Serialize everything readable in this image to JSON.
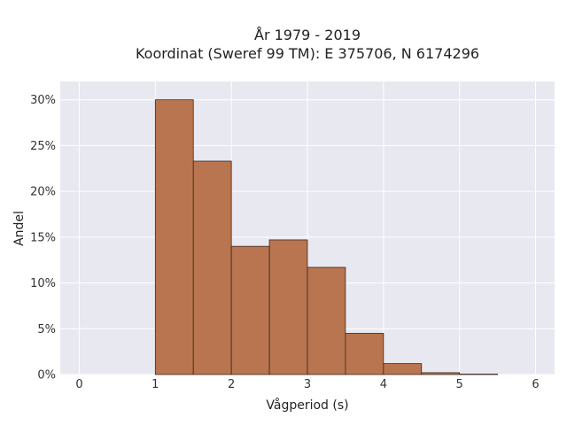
{
  "chart_data": {
    "type": "bar",
    "title_lines": [
      "År 1979 - 2019",
      "Koordinat (Sweref 99 TM): E 375706, N 6174296"
    ],
    "xlabel": "Vågperiod (s)",
    "ylabel": "Andel",
    "xlim": [
      -0.25,
      6.25
    ],
    "ylim": [
      0,
      0.32
    ],
    "x_ticks": [
      0,
      1,
      2,
      3,
      4,
      5,
      6
    ],
    "x_tick_labels": [
      "0",
      "1",
      "2",
      "3",
      "4",
      "5",
      "6"
    ],
    "y_ticks": [
      0,
      0.05,
      0.1,
      0.15,
      0.2,
      0.25,
      0.3
    ],
    "y_tick_labels": [
      "0%",
      "5%",
      "10%",
      "15%",
      "20%",
      "25%",
      "30%"
    ],
    "bin_edges": [
      1.0,
      1.5,
      2.0,
      2.5,
      3.0,
      3.5,
      4.0,
      4.5,
      5.0,
      5.5
    ],
    "values": [
      0.3,
      0.233,
      0.14,
      0.147,
      0.117,
      0.045,
      0.012,
      0.002,
      0.0005
    ],
    "bar_color": "#b9754f",
    "bar_edge_color": "#3a2a20",
    "plot_bg": "#e8e8f0",
    "grid": true,
    "grid_color": "#ffffff"
  }
}
